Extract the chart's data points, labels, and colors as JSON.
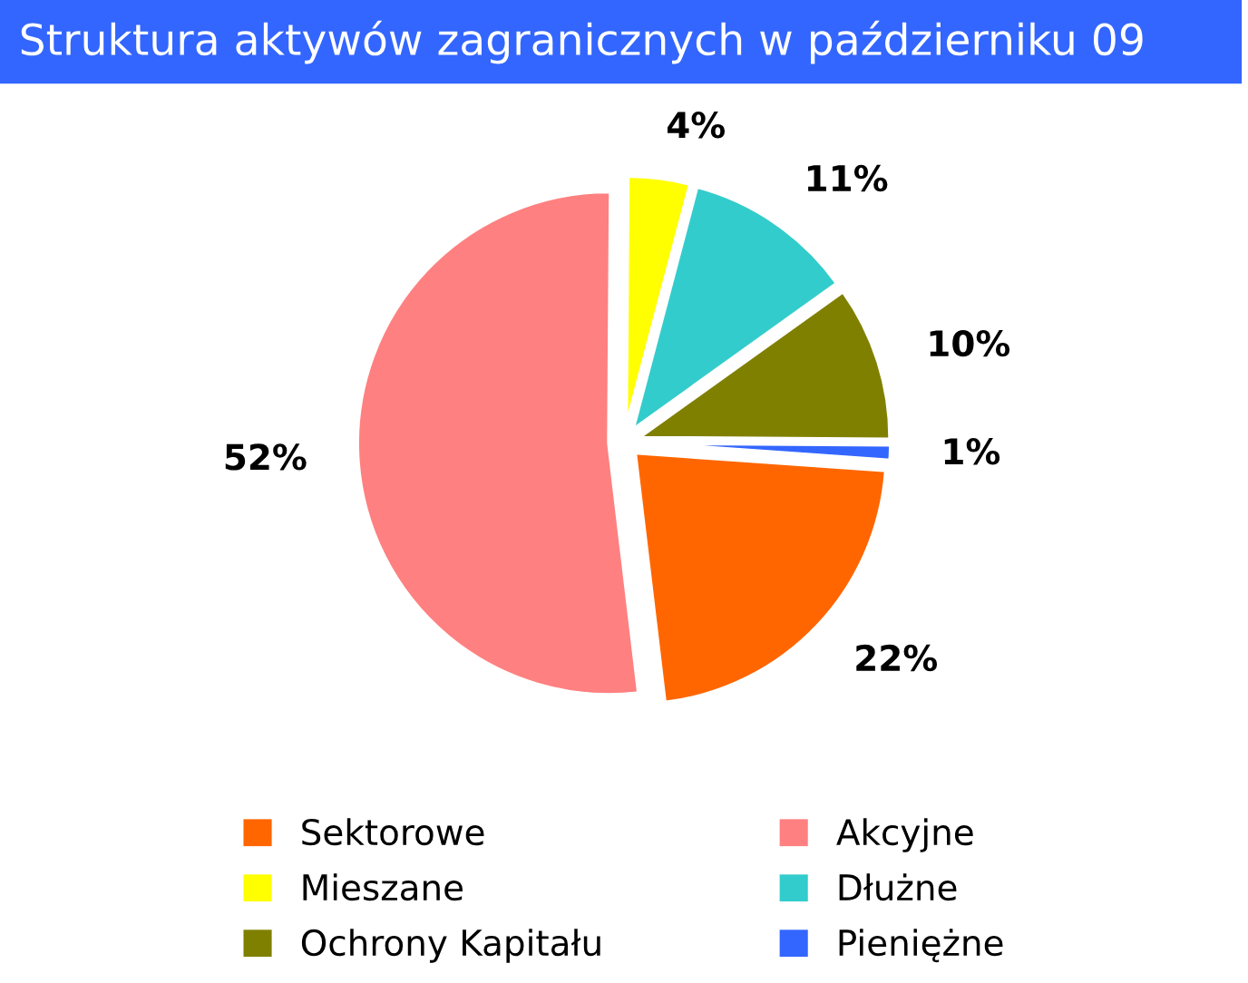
{
  "chart_data": {
    "type": "pie",
    "title": "Struktura aktywów zagranicznych w październiku 09",
    "categories": [
      "Sektorowe",
      "Akcyjne",
      "Mieszane",
      "Dłużne",
      "Ochrony Kapitału",
      "Pieniężne"
    ],
    "values": [
      22,
      52,
      4,
      11,
      10,
      1
    ],
    "value_labels": [
      "22%",
      "52%",
      "4%",
      "11%",
      "10%",
      "1%"
    ],
    "colors": [
      "#ff6600",
      "#ff8080",
      "#ffff00",
      "#33cccc",
      "#808000",
      "#3366ff"
    ],
    "legend": "bottom"
  }
}
